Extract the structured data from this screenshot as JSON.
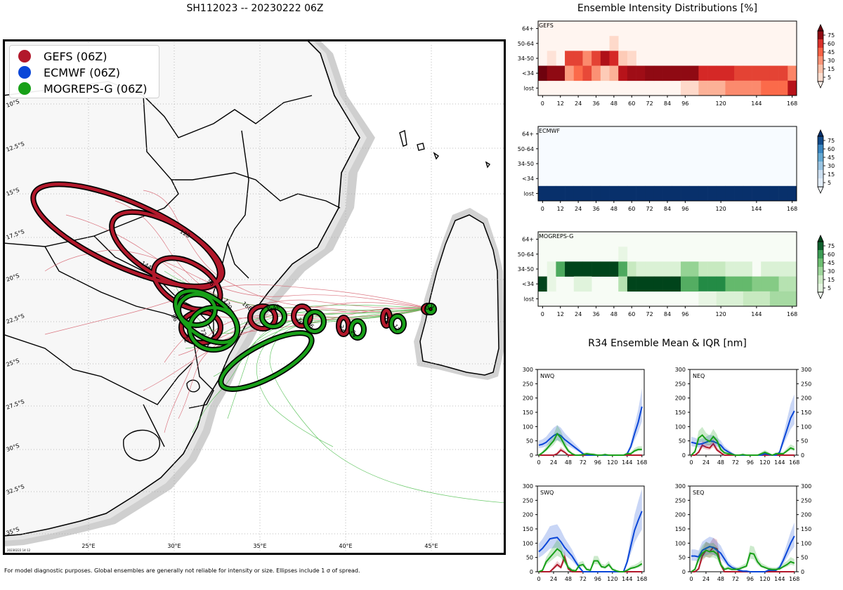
{
  "figure": {
    "map_title": "SH112023 -- 20230222 06Z",
    "footnote": "For model diagnostic purposes. Global ensembles are generally not reliable for intensity or size. Ellipses include 1 σ of spread.",
    "timestamp": "20230222 14:12"
  },
  "colors": {
    "gefs": "#b2182b",
    "ecmwf": "#0a46d8",
    "mogreps": "#18a018",
    "land": "#f7f7f7",
    "coast_shade": "#d9d9d9"
  },
  "legend": [
    {
      "label": "GEFS (06Z)",
      "color": "#b2182b"
    },
    {
      "label": "ECMWF (06Z)",
      "color": "#0a46d8"
    },
    {
      "label": "MOGREPS-G (06Z)",
      "color": "#18a018"
    }
  ],
  "map": {
    "lon_ticks": [
      "25°E",
      "30°E",
      "35°E",
      "40°E",
      "45°E"
    ],
    "lat_ticks": [
      "10°S",
      "12.5°S",
      "15°S",
      "17.5°S",
      "20°S",
      "22.5°S",
      "25°S",
      "27.5°S",
      "30°S",
      "32.5°S",
      "35°S"
    ],
    "gefs_ellipse_labels": [
      "0",
      "12",
      "24",
      "36",
      "48",
      "72",
      "96",
      "120",
      "144",
      "168"
    ],
    "mogreps_ellipse_labels": [
      "0",
      "12",
      "24",
      "36",
      "48",
      "72",
      "96",
      "120"
    ]
  },
  "intensity": {
    "title": "Ensemble Intensity Distributions [%]",
    "row_labels": [
      "64+",
      "50-64",
      "34-50",
      "<34",
      "lost"
    ],
    "x_ticks": [
      "0",
      "12",
      "24",
      "36",
      "48",
      "60",
      "72",
      "84",
      "96",
      "120",
      "144",
      "168"
    ],
    "colorbar_ticks": [
      "75",
      "60",
      "45",
      "30",
      "15",
      "5"
    ]
  },
  "r34": {
    "title": "R34 Ensemble Mean & IQR [nm]",
    "y_ticks": [
      "0",
      "50",
      "100",
      "150",
      "200",
      "250",
      "300"
    ],
    "x_ticks": [
      "0",
      "24",
      "48",
      "72",
      "96",
      "120",
      "144",
      "168"
    ]
  },
  "chart_data": [
    {
      "type": "heatmap",
      "title": "GEFS",
      "x_hours": [
        0,
        6,
        12,
        18,
        24,
        30,
        36,
        42,
        48,
        54,
        60,
        66,
        72,
        78,
        84,
        90,
        96,
        102,
        108,
        114,
        120,
        126,
        132,
        138,
        144,
        150,
        156,
        162,
        168
      ],
      "rows": [
        "64+",
        "50-64",
        "34-50",
        "<34",
        "lost"
      ],
      "values": [
        [
          0,
          0,
          0,
          0,
          0,
          0,
          0,
          0,
          0,
          0,
          0,
          0,
          0,
          0,
          0,
          0,
          0,
          0,
          0,
          0,
          0,
          0,
          0,
          0,
          0,
          0,
          0,
          0,
          0
        ],
        [
          0,
          0,
          0,
          0,
          0,
          0,
          0,
          0,
          12,
          0,
          0,
          0,
          0,
          0,
          0,
          0,
          0,
          0,
          0,
          0,
          0,
          0,
          0,
          0,
          0,
          0,
          0,
          0,
          0
        ],
        [
          0,
          8,
          0,
          62,
          62,
          40,
          62,
          82,
          70,
          18,
          12,
          0,
          0,
          0,
          0,
          0,
          0,
          0,
          0,
          0,
          0,
          0,
          0,
          0,
          0,
          0,
          0,
          0,
          0
        ],
        [
          98,
          90,
          90,
          35,
          50,
          60,
          38,
          18,
          28,
          80,
          86,
          86,
          90,
          90,
          90,
          90,
          90,
          90,
          70,
          70,
          70,
          70,
          62,
          62,
          62,
          62,
          62,
          62,
          42
        ],
        [
          0,
          0,
          0,
          0,
          0,
          0,
          0,
          0,
          0,
          0,
          0,
          0,
          0,
          0,
          0,
          0,
          12,
          12,
          28,
          28,
          28,
          40,
          40,
          40,
          40,
          50,
          50,
          50,
          80
        ]
      ],
      "colormap": "Reds"
    },
    {
      "type": "heatmap",
      "title": "ECMWF",
      "x_hours": [
        0,
        6,
        12,
        18,
        24,
        30,
        36,
        42,
        48,
        54,
        60,
        66,
        72,
        78,
        84,
        90,
        96,
        102,
        108,
        114,
        120,
        126,
        132,
        138,
        144,
        150,
        156,
        162,
        168
      ],
      "rows": [
        "64+",
        "50-64",
        "34-50",
        "<34",
        "lost"
      ],
      "values": [
        [
          0,
          0,
          0,
          0,
          0,
          0,
          0,
          0,
          0,
          0,
          0,
          0,
          0,
          0,
          0,
          0,
          0,
          0,
          0,
          0,
          0,
          0,
          0,
          0,
          0,
          0,
          0,
          0,
          0
        ],
        [
          0,
          0,
          0,
          0,
          0,
          0,
          0,
          0,
          0,
          0,
          0,
          0,
          0,
          0,
          0,
          0,
          0,
          0,
          0,
          0,
          0,
          0,
          0,
          0,
          0,
          0,
          0,
          0,
          0
        ],
        [
          0,
          0,
          0,
          0,
          0,
          0,
          0,
          0,
          0,
          0,
          0,
          0,
          0,
          0,
          0,
          0,
          0,
          0,
          0,
          0,
          0,
          0,
          0,
          0,
          0,
          0,
          0,
          0,
          0
        ],
        [
          0,
          0,
          0,
          0,
          0,
          0,
          0,
          0,
          0,
          0,
          0,
          0,
          0,
          0,
          0,
          0,
          0,
          0,
          0,
          0,
          0,
          0,
          0,
          0,
          0,
          0,
          0,
          0,
          0
        ],
        [
          100,
          100,
          100,
          100,
          100,
          100,
          100,
          100,
          100,
          100,
          100,
          100,
          100,
          100,
          100,
          100,
          100,
          100,
          100,
          100,
          100,
          100,
          100,
          100,
          100,
          100,
          100,
          100,
          100
        ]
      ],
      "colormap": "Blues"
    },
    {
      "type": "heatmap",
      "title": "MOGREPS-G",
      "x_hours": [
        0,
        6,
        12,
        18,
        24,
        30,
        36,
        42,
        48,
        54,
        60,
        66,
        72,
        78,
        84,
        90,
        96,
        102,
        108,
        114,
        120,
        126,
        132,
        138,
        144,
        150,
        156,
        162,
        168
      ],
      "rows": [
        "64+",
        "50-64",
        "34-50",
        "<34",
        "lost"
      ],
      "values": [
        [
          0,
          0,
          0,
          0,
          0,
          0,
          0,
          0,
          0,
          0,
          0,
          0,
          0,
          0,
          0,
          0,
          0,
          0,
          0,
          0,
          0,
          0,
          0,
          0,
          0,
          0,
          0,
          0,
          0
        ],
        [
          0,
          0,
          0,
          0,
          0,
          0,
          0,
          0,
          0,
          8,
          0,
          0,
          0,
          0,
          0,
          0,
          0,
          0,
          0,
          0,
          0,
          0,
          0,
          0,
          0,
          0,
          0,
          0,
          0
        ],
        [
          0,
          8,
          62,
          100,
          100,
          100,
          100,
          100,
          100,
          62,
          25,
          15,
          15,
          15,
          15,
          15,
          40,
          40,
          25,
          25,
          25,
          15,
          15,
          15,
          0,
          15,
          15,
          15,
          15
        ],
        [
          100,
          8,
          0,
          0,
          12,
          12,
          0,
          0,
          0,
          30,
          100,
          100,
          100,
          100,
          100,
          100,
          60,
          60,
          75,
          75,
          75,
          55,
          55,
          55,
          45,
          45,
          45,
          30,
          30
        ],
        [
          0,
          0,
          0,
          0,
          0,
          0,
          0,
          0,
          0,
          0,
          0,
          0,
          0,
          0,
          0,
          0,
          0,
          0,
          8,
          8,
          15,
          15,
          15,
          25,
          25,
          25,
          35,
          35,
          35
        ]
      ],
      "colormap": "Greens"
    },
    {
      "type": "line",
      "title": "NWQ",
      "ylim": [
        0,
        300
      ],
      "x": [
        0,
        6,
        12,
        18,
        24,
        30,
        36,
        42,
        48,
        54,
        60,
        66,
        72,
        78,
        84,
        90,
        96,
        102,
        108,
        114,
        120,
        126,
        132,
        138,
        144,
        150,
        156,
        162,
        168
      ],
      "series": [
        {
          "name": "GEFS",
          "values": [
            0,
            0,
            0,
            0,
            0,
            5,
            18,
            10,
            0,
            0,
            0,
            0,
            0,
            0,
            0,
            0,
            0,
            0,
            0,
            0,
            0,
            0,
            0,
            0,
            0,
            0,
            0,
            0,
            0
          ]
        },
        {
          "name": "ECMWF",
          "values": [
            35,
            38,
            45,
            57,
            68,
            75,
            68,
            55,
            45,
            35,
            25,
            15,
            5,
            0,
            0,
            0,
            0,
            0,
            0,
            0,
            0,
            0,
            0,
            0,
            5,
            30,
            75,
            115,
            170
          ]
        },
        {
          "name": "MOGREPS-G",
          "values": [
            0,
            8,
            20,
            35,
            50,
            75,
            60,
            35,
            15,
            5,
            0,
            0,
            2,
            5,
            3,
            2,
            0,
            0,
            2,
            0,
            0,
            0,
            0,
            0,
            5,
            5,
            15,
            20,
            20
          ]
        }
      ]
    },
    {
      "type": "line",
      "title": "NEQ",
      "ylim": [
        0,
        300
      ],
      "x": [
        0,
        6,
        12,
        18,
        24,
        30,
        36,
        42,
        48,
        54,
        60,
        66,
        72,
        78,
        84,
        90,
        96,
        102,
        108,
        114,
        120,
        126,
        132,
        138,
        144,
        150,
        156,
        162,
        168
      ],
      "series": [
        {
          "name": "GEFS",
          "values": [
            0,
            0,
            10,
            35,
            28,
            25,
            40,
            18,
            8,
            0,
            0,
            0,
            0,
            0,
            0,
            0,
            0,
            0,
            0,
            0,
            0,
            0,
            0,
            0,
            0,
            0,
            0,
            0,
            0
          ]
        },
        {
          "name": "ECMWF",
          "values": [
            45,
            42,
            38,
            40,
            45,
            50,
            48,
            42,
            35,
            20,
            12,
            5,
            0,
            0,
            0,
            0,
            0,
            0,
            0,
            0,
            5,
            2,
            0,
            0,
            10,
            50,
            90,
            130,
            155
          ]
        },
        {
          "name": "MOGREPS-G",
          "values": [
            0,
            12,
            60,
            70,
            55,
            48,
            65,
            50,
            20,
            8,
            5,
            3,
            0,
            0,
            2,
            0,
            0,
            0,
            0,
            5,
            10,
            5,
            0,
            5,
            5,
            5,
            15,
            25,
            20
          ]
        }
      ]
    },
    {
      "type": "line",
      "title": "SWQ",
      "ylim": [
        0,
        300
      ],
      "x": [
        0,
        6,
        12,
        18,
        24,
        30,
        36,
        42,
        48,
        54,
        60,
        66,
        72,
        78,
        84,
        90,
        96,
        102,
        108,
        114,
        120,
        126,
        132,
        138,
        144,
        150,
        156,
        162,
        168
      ],
      "series": [
        {
          "name": "GEFS",
          "values": [
            0,
            0,
            0,
            0,
            12,
            25,
            15,
            52,
            10,
            0,
            0,
            0,
            0,
            0,
            0,
            0,
            0,
            0,
            0,
            0,
            0,
            0,
            0,
            0,
            0,
            0,
            0,
            0,
            0
          ]
        },
        {
          "name": "ECMWF",
          "values": [
            70,
            82,
            98,
            115,
            118,
            120,
            105,
            85,
            70,
            55,
            35,
            15,
            0,
            0,
            0,
            0,
            0,
            0,
            0,
            0,
            0,
            0,
            0,
            0,
            35,
            90,
            145,
            180,
            212
          ]
        },
        {
          "name": "MOGREPS-G",
          "values": [
            0,
            5,
            35,
            50,
            65,
            80,
            70,
            40,
            15,
            5,
            3,
            22,
            25,
            8,
            5,
            38,
            38,
            18,
            15,
            25,
            8,
            3,
            0,
            0,
            5,
            12,
            15,
            20,
            28
          ]
        }
      ]
    },
    {
      "type": "line",
      "title": "SEQ",
      "ylim": [
        0,
        300
      ],
      "x": [
        0,
        6,
        12,
        18,
        24,
        30,
        36,
        42,
        48,
        54,
        60,
        66,
        72,
        78,
        84,
        90,
        96,
        102,
        108,
        114,
        120,
        126,
        132,
        138,
        144,
        150,
        156,
        162,
        168
      ],
      "series": [
        {
          "name": "GEFS",
          "values": [
            0,
            0,
            10,
            55,
            75,
            70,
            85,
            80,
            25,
            0,
            0,
            0,
            0,
            0,
            0,
            0,
            0,
            0,
            0,
            0,
            0,
            0,
            0,
            0,
            0,
            0,
            0,
            0,
            0
          ]
        },
        {
          "name": "ECMWF",
          "values": [
            55,
            55,
            52,
            75,
            82,
            88,
            85,
            75,
            65,
            45,
            25,
            15,
            10,
            5,
            2,
            2,
            0,
            0,
            0,
            0,
            0,
            5,
            5,
            5,
            15,
            40,
            70,
            100,
            125
          ]
        },
        {
          "name": "MOGREPS-G",
          "values": [
            0,
            8,
            45,
            65,
            75,
            70,
            72,
            62,
            25,
            8,
            12,
            8,
            8,
            10,
            15,
            20,
            65,
            62,
            35,
            20,
            15,
            10,
            8,
            8,
            10,
            18,
            25,
            35,
            30
          ]
        }
      ]
    }
  ]
}
